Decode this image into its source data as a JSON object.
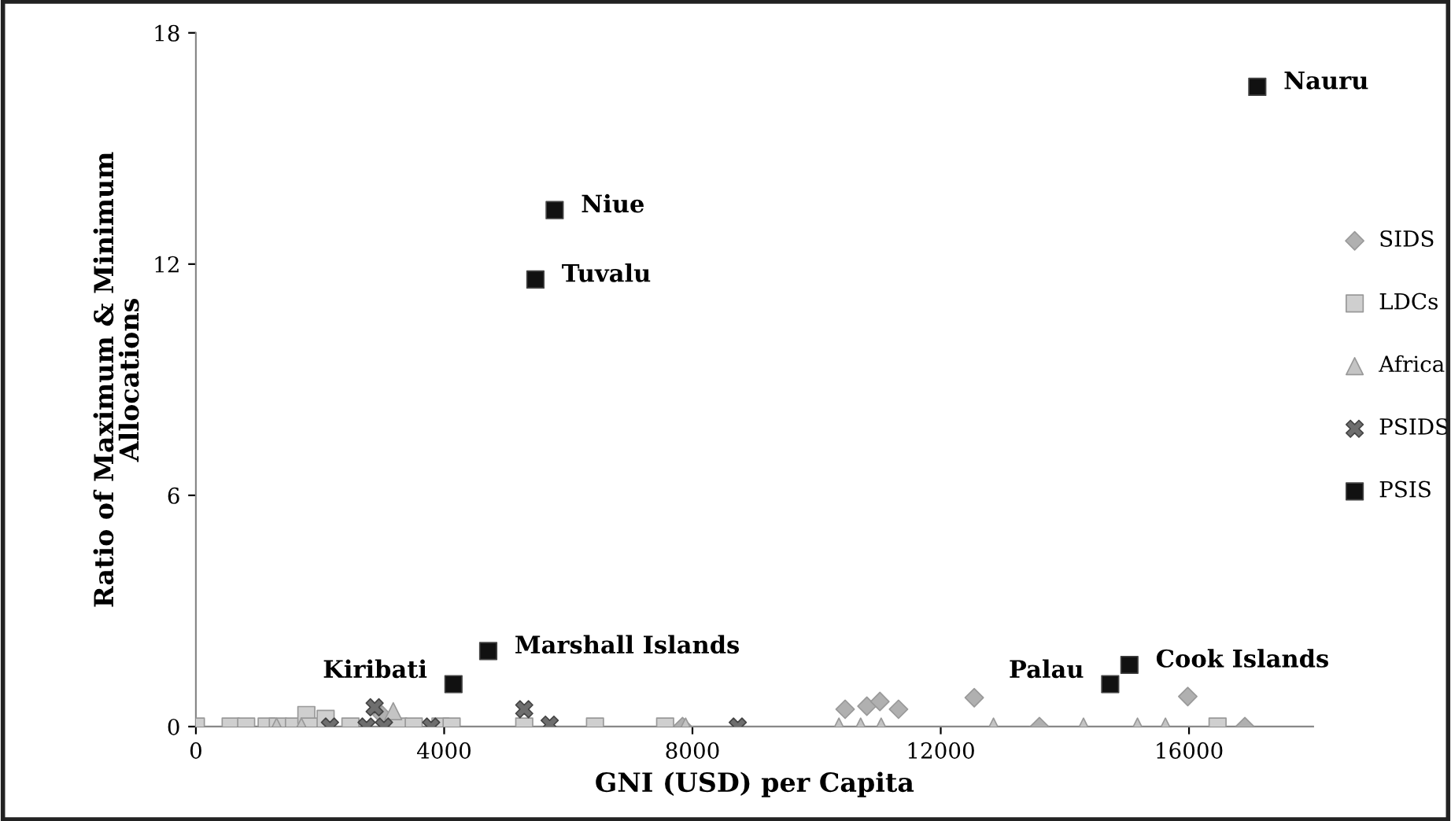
{
  "chart_data": {
    "type": "scatter",
    "xlabel": "GNI (USD) per Capita",
    "ylabel": "Ratio of Maximum & Minimum\nAllocations",
    "xlim": [
      0,
      18000
    ],
    "ylim": [
      0,
      18
    ],
    "xticks": [
      0,
      4000,
      8000,
      12000,
      16000
    ],
    "yticks": [
      0,
      6,
      12,
      18
    ],
    "grid": false,
    "legend": "right",
    "series": [
      {
        "name": "SIDS",
        "color": "#b0b0b0",
        "marker": "diamond",
        "x": [
          3000,
          7840,
          10460,
          10810,
          11020,
          11320,
          12540,
          13590,
          15980,
          16900
        ],
        "values": [
          0.3,
          0,
          0.45,
          0.53,
          0.65,
          0.45,
          0.75,
          0,
          0.78,
          0
        ]
      },
      {
        "name": "LDCs",
        "color": "#cfcfcf",
        "marker": "square",
        "x": [
          0,
          560,
          810,
          1140,
          1320,
          1580,
          1780,
          1830,
          2090,
          2490,
          3260,
          3510,
          3940,
          4120,
          5290,
          6430,
          7560,
          16460
        ],
        "values": [
          0,
          0,
          0,
          0,
          0,
          0,
          0.3,
          0,
          0.2,
          0,
          0,
          0,
          0,
          0,
          0,
          0,
          0,
          0
        ]
      },
      {
        "name": "Africa",
        "color": "#c4c4c4",
        "marker": "triangle",
        "x": [
          1300,
          1700,
          3180,
          7890,
          10360,
          10710,
          11040,
          12850,
          14300,
          15170,
          15620
        ],
        "values": [
          0,
          0,
          0.4,
          0,
          0,
          0,
          0,
          0,
          0,
          0,
          0
        ]
      },
      {
        "name": "PSIDS",
        "color": "#6e6e6e",
        "marker": "cross",
        "x": [
          2160,
          2750,
          2880,
          3030,
          3790,
          5290,
          5700,
          8730
        ],
        "values": [
          0,
          0,
          0.5,
          0,
          0,
          0.45,
          0.05,
          0
        ]
      },
      {
        "name": "PSIS",
        "color": "#111111",
        "marker": "square",
        "x": [
          17100,
          5780,
          5470,
          4710,
          4150,
          14730,
          15040
        ],
        "values": [
          16.6,
          13.4,
          11.6,
          1.96,
          1.1,
          1.1,
          1.6
        ],
        "value_labels": [
          "Nauru",
          "Niue",
          "Tuvalu",
          "Marshall Islands",
          "Kiribati",
          "Palau",
          "Cook Islands"
        ]
      }
    ]
  }
}
